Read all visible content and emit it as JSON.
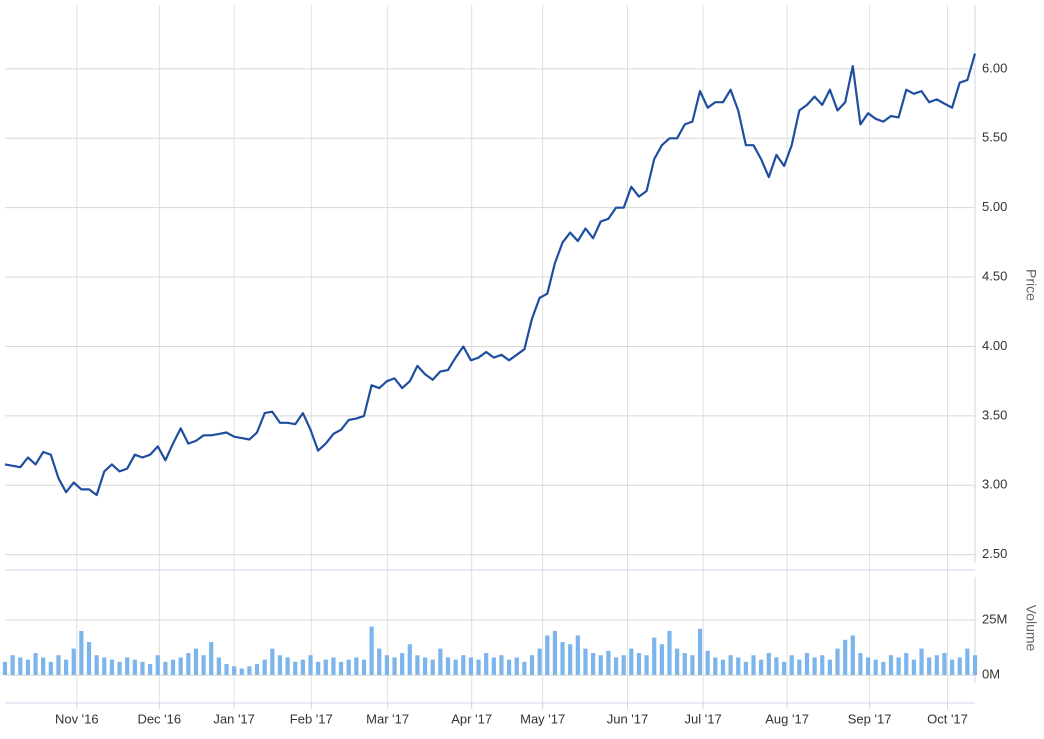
{
  "chart_data": [
    {
      "type": "line",
      "name": "Price",
      "axis_label": "Price",
      "color": "#1f4ea0",
      "values": [
        3.15,
        3.14,
        3.13,
        3.2,
        3.15,
        3.24,
        3.22,
        3.05,
        2.95,
        3.02,
        2.97,
        2.97,
        2.93,
        3.1,
        3.15,
        3.1,
        3.12,
        3.22,
        3.2,
        3.22,
        3.28,
        3.18,
        3.3,
        3.41,
        3.3,
        3.32,
        3.36,
        3.36,
        3.37,
        3.38,
        3.35,
        3.34,
        3.33,
        3.38,
        3.52,
        3.53,
        3.45,
        3.45,
        3.44,
        3.52,
        3.4,
        3.25,
        3.3,
        3.37,
        3.4,
        3.47,
        3.48,
        3.5,
        3.72,
        3.7,
        3.75,
        3.77,
        3.7,
        3.75,
        3.86,
        3.8,
        3.76,
        3.82,
        3.83,
        3.92,
        4.0,
        3.9,
        3.92,
        3.96,
        3.92,
        3.94,
        3.9,
        3.94,
        3.98,
        4.2,
        4.35,
        4.38,
        4.6,
        4.75,
        4.82,
        4.76,
        4.85,
        4.78,
        4.9,
        4.92,
        5.0,
        5.0,
        5.15,
        5.08,
        5.12,
        5.35,
        5.45,
        5.5,
        5.5,
        5.6,
        5.62,
        5.84,
        5.72,
        5.76,
        5.76,
        5.85,
        5.7,
        5.45,
        5.45,
        5.35,
        5.22,
        5.38,
        5.3,
        5.45,
        5.7,
        5.74,
        5.8,
        5.74,
        5.85,
        5.7,
        5.76,
        6.02,
        5.6,
        5.68,
        5.64,
        5.62,
        5.66,
        5.65,
        5.85,
        5.82,
        5.84,
        5.76,
        5.78,
        5.75,
        5.72,
        5.9,
        5.92,
        6.11
      ],
      "xlim": [
        0,
        127
      ],
      "ylim": [
        2.44,
        6.46
      ],
      "yticks": [
        {
          "value": 2.5,
          "label": "2.50"
        },
        {
          "value": 3,
          "label": "3.00"
        },
        {
          "value": 3.5,
          "label": "3.50"
        },
        {
          "value": 4,
          "label": "4.00"
        },
        {
          "value": 4.5,
          "label": "4.50"
        },
        {
          "value": 5,
          "label": "5.00"
        },
        {
          "value": 5.5,
          "label": "5.50"
        },
        {
          "value": 6,
          "label": "6.00"
        }
      ],
      "grid": true
    },
    {
      "type": "bar",
      "name": "Volume",
      "axis_label": "Volume",
      "color": "#7cb5ec",
      "values": [
        6,
        9,
        8,
        7,
        10,
        8,
        6,
        9,
        7,
        12,
        20,
        15,
        9,
        8,
        7,
        6,
        8,
        7,
        6,
        5,
        9,
        6,
        7,
        8,
        10,
        12,
        9,
        15,
        8,
        5,
        4,
        3,
        4,
        5,
        7,
        12,
        9,
        8,
        6,
        7,
        9,
        6,
        7,
        8,
        6,
        7,
        8,
        7,
        22,
        12,
        9,
        8,
        10,
        14,
        9,
        8,
        7,
        12,
        8,
        7,
        9,
        8,
        7,
        10,
        8,
        9,
        7,
        8,
        6,
        9,
        12,
        18,
        20,
        15,
        14,
        18,
        12,
        10,
        9,
        11,
        8,
        9,
        12,
        10,
        9,
        17,
        14,
        20,
        12,
        10,
        9,
        21,
        11,
        8,
        7,
        9,
        8,
        6,
        9,
        7,
        10,
        8,
        6,
        9,
        7,
        10,
        8,
        9,
        7,
        12,
        16,
        18,
        10,
        8,
        7,
        6,
        9,
        8,
        10,
        7,
        12,
        8,
        9,
        10,
        7,
        8,
        12,
        9
      ],
      "xlim": [
        0,
        127
      ],
      "ylim": [
        -3.6,
        44.5
      ],
      "yticks": [
        {
          "value": 0,
          "label": "0M"
        },
        {
          "value": 25,
          "label": "25M"
        }
      ],
      "xticks": [
        {
          "value": 9.4,
          "label": "Nov '16"
        },
        {
          "value": 20.2,
          "label": "Dec '16"
        },
        {
          "value": 30,
          "label": "Jan '17"
        },
        {
          "value": 40.1,
          "label": "Feb '17"
        },
        {
          "value": 50.1,
          "label": "Mar '17"
        },
        {
          "value": 61.1,
          "label": "Apr '17"
        },
        {
          "value": 70.4,
          "label": "May '17"
        },
        {
          "value": 81.5,
          "label": "Jun '17"
        },
        {
          "value": 91.4,
          "label": "Jul '17"
        },
        {
          "value": 102.4,
          "label": "Aug '17"
        },
        {
          "value": 113.2,
          "label": "Sep '17"
        },
        {
          "value": 123.4,
          "label": "Oct '17"
        }
      ],
      "grid": true
    }
  ]
}
